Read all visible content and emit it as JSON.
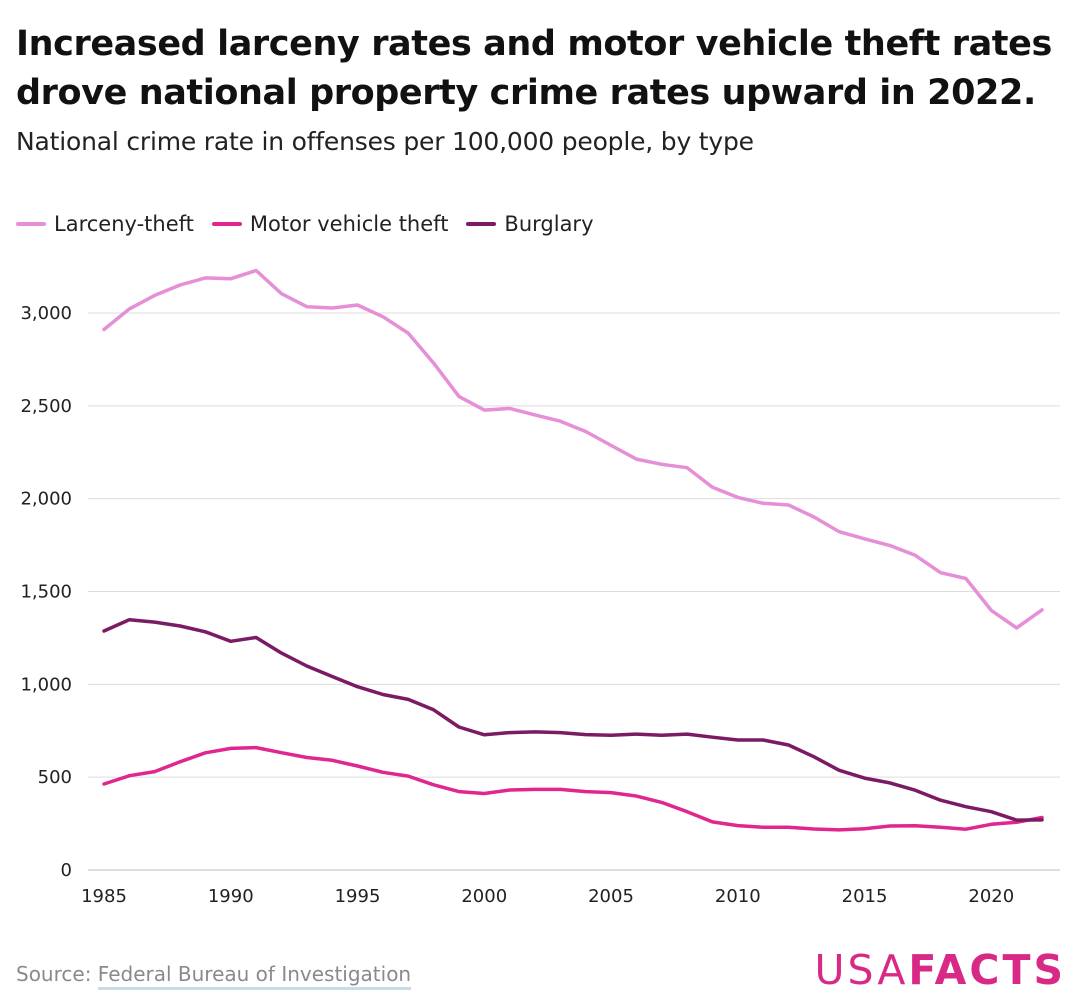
{
  "header": {
    "title": "Increased larceny rates and motor vehicle theft rates drove national property crime rates upward in 2022.",
    "subtitle": "National crime rate in offenses per 100,000 people, by type"
  },
  "legend": [
    {
      "label": "Larceny-theft",
      "color": "#e58fd6"
    },
    {
      "label": "Motor vehicle theft",
      "color": "#e0278f"
    },
    {
      "label": "Burglary",
      "color": "#7a1b63"
    }
  ],
  "chart_data": {
    "type": "line",
    "title": "Increased larceny rates and motor vehicle theft rates drove national property crime rates upward in 2022.",
    "subtitle": "National crime rate in offenses per 100,000 people, by type",
    "xlabel": "",
    "ylabel": "",
    "x": [
      1985,
      1986,
      1987,
      1988,
      1989,
      1990,
      1991,
      1992,
      1993,
      1994,
      1995,
      1996,
      1997,
      1998,
      1999,
      2000,
      2001,
      2002,
      2003,
      2004,
      2005,
      2006,
      2007,
      2008,
      2009,
      2010,
      2011,
      2012,
      2013,
      2014,
      2015,
      2016,
      2017,
      2018,
      2019,
      2020,
      2021,
      2022
    ],
    "xlim": [
      1985,
      2022
    ],
    "x_ticks": [
      1985,
      1990,
      1995,
      2000,
      2005,
      2010,
      2015,
      2020
    ],
    "x_tick_labels": [
      "1985",
      "1990",
      "1995",
      "2000",
      "2005",
      "2010",
      "2015",
      "2020"
    ],
    "ylim": [
      0,
      3300
    ],
    "y_ticks": [
      0,
      500,
      1000,
      1500,
      2000,
      2500,
      3000
    ],
    "y_tick_labels": [
      "0",
      "500",
      "1,000",
      "1,500",
      "2,000",
      "2,500",
      "3,000"
    ],
    "grid": true,
    "legend_position": "top-left",
    "series": [
      {
        "name": "Larceny-theft",
        "color": "#e58fd6",
        "values": [
          2911,
          3022,
          3095,
          3151,
          3189,
          3185,
          3229,
          3104,
          3034,
          3027,
          3043,
          2980,
          2892,
          2730,
          2551,
          2477,
          2486,
          2451,
          2417,
          2362,
          2287,
          2213,
          2185,
          2167,
          2062,
          2007,
          1975,
          1966,
          1902,
          1822,
          1784,
          1748,
          1695,
          1601,
          1570,
          1398,
          1304,
          1401
        ]
      },
      {
        "name": "Motor vehicle theft",
        "color": "#e0278f",
        "values": [
          463,
          508,
          530,
          583,
          631,
          655,
          659,
          632,
          606,
          591,
          560,
          526,
          506,
          459,
          422,
          412,
          431,
          434,
          434,
          422,
          417,
          398,
          364,
          314,
          259,
          239,
          230,
          230,
          221,
          216,
          222,
          237,
          238,
          230,
          220,
          246,
          257,
          283
        ]
      },
      {
        "name": "Burglary",
        "color": "#7a1b63",
        "values": [
          1287,
          1348,
          1335,
          1314,
          1283,
          1232,
          1252,
          1168,
          1099,
          1042,
          987,
          945,
          919,
          863,
          770,
          728,
          740,
          744,
          740,
          729,
          726,
          732,
          726,
          732,
          715,
          700,
          700,
          673,
          610,
          537,
          495,
          469,
          430,
          376,
          341,
          314,
          269,
          270
        ]
      }
    ]
  },
  "footer": {
    "source_prefix": "Source: ",
    "source_link": "Federal Bureau of Investigation",
    "brand_part1": "USA",
    "brand_part2": "FACTS"
  }
}
